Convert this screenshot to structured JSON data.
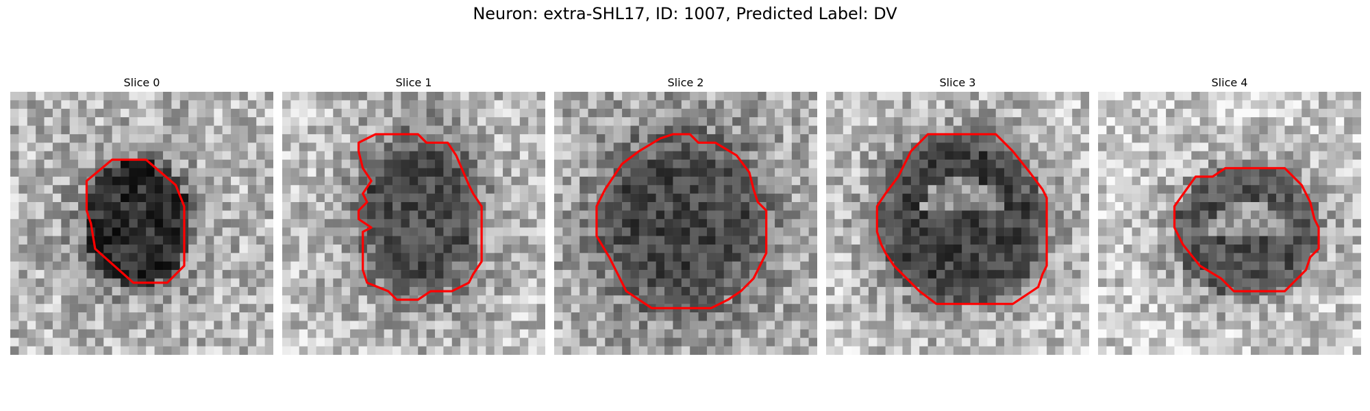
{
  "figure": {
    "title": "Neuron: extra-SHL17, ID: 1007, Predicted Label: DV"
  },
  "colors": {
    "contour": "#ff0000"
  },
  "panels": [
    {
      "title": "Slice 0"
    },
    {
      "title": "Slice 1"
    },
    {
      "title": "Slice 2"
    },
    {
      "title": "Slice 3"
    },
    {
      "title": "Slice 4"
    }
  ]
}
